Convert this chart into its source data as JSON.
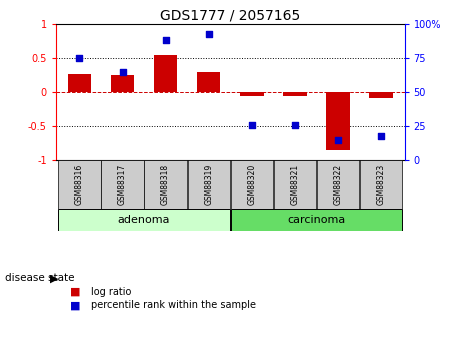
{
  "title": "GDS1777 / 2057165",
  "samples": [
    "GSM88316",
    "GSM88317",
    "GSM88318",
    "GSM88319",
    "GSM88320",
    "GSM88321",
    "GSM88322",
    "GSM88323"
  ],
  "log_ratio": [
    0.27,
    0.25,
    0.55,
    0.3,
    -0.05,
    -0.05,
    -0.85,
    -0.08
  ],
  "percentile_rank": [
    75,
    65,
    88,
    93,
    26,
    26,
    15,
    18
  ],
  "groups": [
    {
      "label": "adenoma",
      "start": 0,
      "end": 4,
      "color": "#ccffcc"
    },
    {
      "label": "carcinoma",
      "start": 4,
      "end": 8,
      "color": "#66dd66"
    }
  ],
  "ylim_left": [
    -1,
    1
  ],
  "ylim_right": [
    0,
    100
  ],
  "bar_color": "#cc0000",
  "dot_color": "#0000cc",
  "dashed_line_color": "#cc0000",
  "dotted_line_color": "#000000",
  "sample_box_color": "#cccccc",
  "legend_bar_label": "log ratio",
  "legend_dot_label": "percentile rank within the sample",
  "disease_state_label": "disease state",
  "yticks_left": [
    -1,
    -0.5,
    0,
    0.5,
    1
  ],
  "ytick_labels_left": [
    "-1",
    "-0.5",
    "0",
    "0.5",
    "1"
  ],
  "yticks_right": [
    0,
    25,
    50,
    75,
    100
  ],
  "ytick_labels_right": [
    "0",
    "25",
    "50",
    "75",
    "100%"
  ],
  "bar_width": 0.55
}
